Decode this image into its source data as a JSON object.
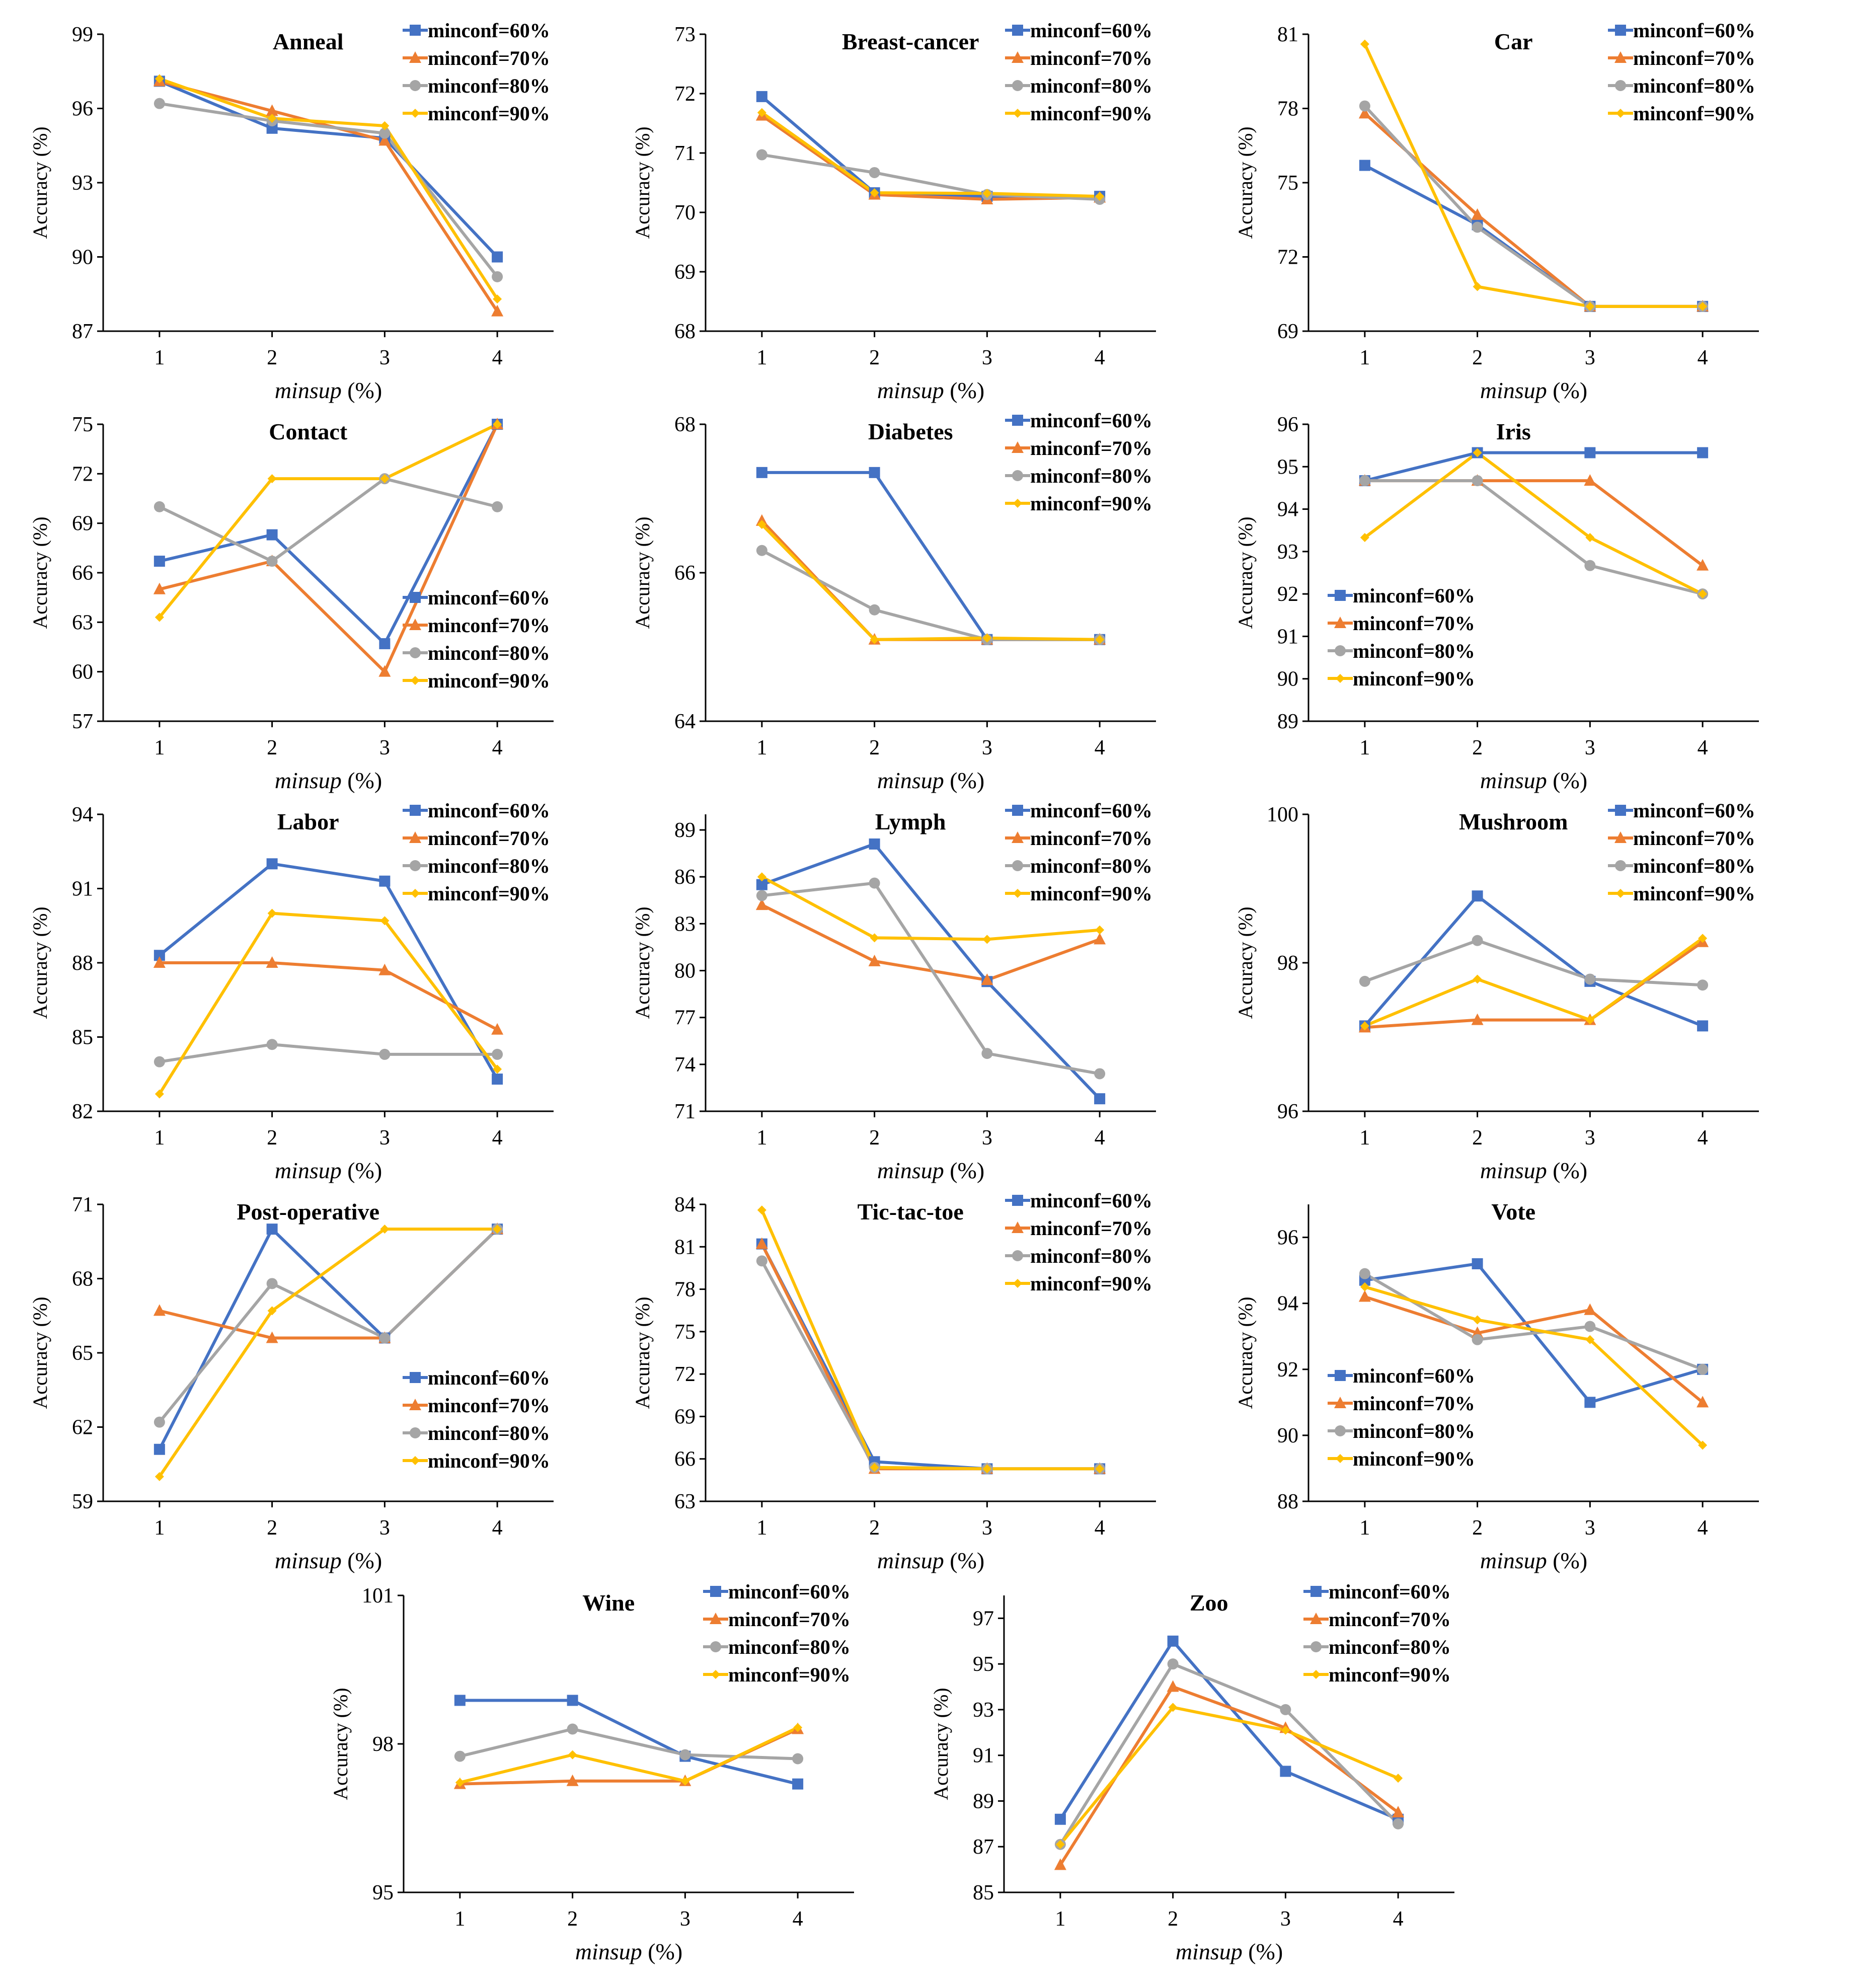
{
  "figure": {
    "xlabel_italic": "minsup",
    "xlabel_unit": " (%)",
    "ylabel": "Accuracy (%)",
    "colors": {
      "s60": "#4472C4",
      "s70": "#ED7D31",
      "s80": "#A5A5A5",
      "s90": "#FFC000"
    }
  },
  "series_names": [
    "minconf=60%",
    "minconf=70%",
    "minconf=80%",
    "minconf=90%"
  ],
  "chart_data": [
    {
      "type": "line",
      "title": "Anneal",
      "categories": [
        "1",
        "2",
        "3",
        "4"
      ],
      "ylim": [
        87,
        99
      ],
      "yticks": [
        "87",
        "90",
        "93",
        "96",
        "99"
      ],
      "legend": "top-right",
      "series": [
        {
          "name": "minconf=60%",
          "values": [
            97.1,
            95.2,
            94.8,
            90.0
          ]
        },
        {
          "name": "minconf=70%",
          "values": [
            97.1,
            95.9,
            94.7,
            87.8
          ]
        },
        {
          "name": "minconf=80%",
          "values": [
            96.2,
            95.5,
            95.0,
            89.2
          ]
        },
        {
          "name": "minconf=90%",
          "values": [
            97.2,
            95.6,
            95.3,
            88.3
          ]
        }
      ]
    },
    {
      "type": "line",
      "title": "Breast-cancer",
      "categories": [
        "1",
        "2",
        "3",
        "4"
      ],
      "ylim": [
        68,
        73
      ],
      "yticks": [
        "68",
        "69",
        "70",
        "71",
        "72",
        "73"
      ],
      "legend": "top-right",
      "series": [
        {
          "name": "minconf=60%",
          "values": [
            71.95,
            70.33,
            70.27,
            70.27
          ]
        },
        {
          "name": "minconf=70%",
          "values": [
            71.63,
            70.3,
            70.22,
            70.25
          ]
        },
        {
          "name": "minconf=80%",
          "values": [
            70.97,
            70.67,
            70.3,
            70.22
          ]
        },
        {
          "name": "minconf=90%",
          "values": [
            71.68,
            70.33,
            70.32,
            70.27
          ]
        }
      ]
    },
    {
      "type": "line",
      "title": "Car",
      "categories": [
        "1",
        "2",
        "3",
        "4"
      ],
      "ylim": [
        69,
        81
      ],
      "yticks": [
        "69",
        "72",
        "75",
        "78",
        "81"
      ],
      "legend": "top-right",
      "series": [
        {
          "name": "minconf=60%",
          "values": [
            75.7,
            73.3,
            70.0,
            70.0
          ]
        },
        {
          "name": "minconf=70%",
          "values": [
            77.8,
            73.7,
            70.0,
            70.0
          ]
        },
        {
          "name": "minconf=80%",
          "values": [
            78.1,
            73.2,
            70.0,
            70.0
          ]
        },
        {
          "name": "minconf=90%",
          "values": [
            80.6,
            70.8,
            70.0,
            70.0
          ]
        }
      ]
    },
    {
      "type": "line",
      "title": "Contact",
      "categories": [
        "1",
        "2",
        "3",
        "4"
      ],
      "ylim": [
        57,
        75
      ],
      "yticks": [
        "57",
        "60",
        "63",
        "66",
        "69",
        "72",
        "75"
      ],
      "legend": "bottom-right",
      "series": [
        {
          "name": "minconf=60%",
          "values": [
            66.7,
            68.3,
            61.7,
            75.0
          ]
        },
        {
          "name": "minconf=70%",
          "values": [
            65.0,
            66.7,
            60.0,
            75.0
          ]
        },
        {
          "name": "minconf=80%",
          "values": [
            70.0,
            66.7,
            71.7,
            70.0
          ]
        },
        {
          "name": "minconf=90%",
          "values": [
            63.3,
            71.7,
            71.7,
            75.0
          ]
        }
      ]
    },
    {
      "type": "line",
      "title": "Diabetes",
      "categories": [
        "1",
        "2",
        "3",
        "4"
      ],
      "ylim": [
        64,
        68
      ],
      "yticks": [
        "64",
        "66",
        "68"
      ],
      "legend": "top-right",
      "series": [
        {
          "name": "minconf=60%",
          "values": [
            67.35,
            67.35,
            65.1,
            65.1
          ]
        },
        {
          "name": "minconf=70%",
          "values": [
            66.7,
            65.1,
            65.1,
            65.1
          ]
        },
        {
          "name": "minconf=80%",
          "values": [
            66.3,
            65.5,
            65.1,
            65.1
          ]
        },
        {
          "name": "minconf=90%",
          "values": [
            66.65,
            65.1,
            65.12,
            65.1
          ]
        }
      ]
    },
    {
      "type": "line",
      "title": "Iris",
      "categories": [
        "1",
        "2",
        "3",
        "4"
      ],
      "ylim": [
        89,
        96
      ],
      "yticks": [
        "89",
        "90",
        "91",
        "92",
        "93",
        "94",
        "95",
        "96"
      ],
      "legend": "bottom-left",
      "series": [
        {
          "name": "minconf=60%",
          "values": [
            94.67,
            95.33,
            95.33,
            95.33
          ]
        },
        {
          "name": "minconf=70%",
          "values": [
            94.67,
            94.67,
            94.67,
            92.67
          ]
        },
        {
          "name": "minconf=80%",
          "values": [
            94.67,
            94.67,
            92.67,
            92.0
          ]
        },
        {
          "name": "minconf=90%",
          "values": [
            93.33,
            95.33,
            93.33,
            92.0
          ]
        }
      ]
    },
    {
      "type": "line",
      "title": "Labor",
      "categories": [
        "1",
        "2",
        "3",
        "4"
      ],
      "ylim": [
        82,
        94
      ],
      "yticks": [
        "82",
        "85",
        "88",
        "91",
        "94"
      ],
      "legend": "top-right",
      "series": [
        {
          "name": "minconf=60%",
          "values": [
            88.3,
            92.0,
            91.3,
            83.3
          ]
        },
        {
          "name": "minconf=70%",
          "values": [
            88.0,
            88.0,
            87.7,
            85.3
          ]
        },
        {
          "name": "minconf=80%",
          "values": [
            84.0,
            84.7,
            84.3,
            84.3
          ]
        },
        {
          "name": "minconf=90%",
          "values": [
            82.7,
            90.0,
            89.7,
            83.7
          ]
        }
      ]
    },
    {
      "type": "line",
      "title": "Lymph",
      "categories": [
        "1",
        "2",
        "3",
        "4"
      ],
      "ylim": [
        71,
        90
      ],
      "yticks": [
        "71",
        "74",
        "77",
        "80",
        "83",
        "86",
        "89"
      ],
      "legend": "top-right",
      "series": [
        {
          "name": "minconf=60%",
          "values": [
            85.5,
            88.1,
            79.3,
            71.8
          ]
        },
        {
          "name": "minconf=70%",
          "values": [
            84.2,
            80.6,
            79.4,
            82.0
          ]
        },
        {
          "name": "minconf=80%",
          "values": [
            84.8,
            85.6,
            74.7,
            73.4
          ]
        },
        {
          "name": "minconf=90%",
          "values": [
            86.0,
            82.1,
            82.0,
            82.6
          ]
        }
      ]
    },
    {
      "type": "line",
      "title": "Mushroom",
      "categories": [
        "1",
        "2",
        "3",
        "4"
      ],
      "ylim": [
        96,
        100
      ],
      "yticks": [
        "96",
        "98",
        "100"
      ],
      "legend": "top-right",
      "series": [
        {
          "name": "minconf=60%",
          "values": [
            97.15,
            98.9,
            97.75,
            97.15
          ]
        },
        {
          "name": "minconf=70%",
          "values": [
            97.13,
            97.23,
            97.23,
            98.28
          ]
        },
        {
          "name": "minconf=80%",
          "values": [
            97.75,
            98.3,
            97.78,
            97.7
          ]
        },
        {
          "name": "minconf=90%",
          "values": [
            97.15,
            97.78,
            97.23,
            98.33
          ]
        }
      ]
    },
    {
      "type": "line",
      "title": "Post-operative",
      "categories": [
        "1",
        "2",
        "3",
        "4"
      ],
      "ylim": [
        59,
        71
      ],
      "yticks": [
        "59",
        "62",
        "65",
        "68",
        "71"
      ],
      "legend": "bottom-right",
      "series": [
        {
          "name": "minconf=60%",
          "values": [
            61.1,
            70.0,
            65.6,
            70.0
          ]
        },
        {
          "name": "minconf=70%",
          "values": [
            66.7,
            65.6,
            65.6,
            70.0
          ]
        },
        {
          "name": "minconf=80%",
          "values": [
            62.2,
            67.8,
            65.6,
            70.0
          ]
        },
        {
          "name": "minconf=90%",
          "values": [
            60.0,
            66.7,
            70.0,
            70.0
          ]
        }
      ]
    },
    {
      "type": "line",
      "title": "Tic-tac-toe",
      "categories": [
        "1",
        "2",
        "3",
        "4"
      ],
      "ylim": [
        63,
        84
      ],
      "yticks": [
        "63",
        "66",
        "69",
        "72",
        "75",
        "78",
        "81",
        "84"
      ],
      "legend": "top-right",
      "series": [
        {
          "name": "minconf=60%",
          "values": [
            81.2,
            65.8,
            65.3,
            65.3
          ]
        },
        {
          "name": "minconf=70%",
          "values": [
            81.2,
            65.3,
            65.3,
            65.3
          ]
        },
        {
          "name": "minconf=80%",
          "values": [
            80.0,
            65.4,
            65.3,
            65.3
          ]
        },
        {
          "name": "minconf=90%",
          "values": [
            83.6,
            65.4,
            65.3,
            65.3
          ]
        }
      ]
    },
    {
      "type": "line",
      "title": "Vote",
      "categories": [
        "1",
        "2",
        "3",
        "4"
      ],
      "ylim": [
        88,
        97
      ],
      "yticks": [
        "88",
        "90",
        "92",
        "94",
        "96"
      ],
      "legend": "bottom-left",
      "series": [
        {
          "name": "minconf=60%",
          "values": [
            94.7,
            95.2,
            91.0,
            92.0
          ]
        },
        {
          "name": "minconf=70%",
          "values": [
            94.2,
            93.1,
            93.8,
            91.0
          ]
        },
        {
          "name": "minconf=80%",
          "values": [
            94.9,
            92.9,
            93.3,
            92.0
          ]
        },
        {
          "name": "minconf=90%",
          "values": [
            94.5,
            93.5,
            92.9,
            89.7
          ]
        }
      ]
    },
    {
      "type": "line",
      "title": "Wine",
      "categories": [
        "1",
        "2",
        "3",
        "4"
      ],
      "ylim": [
        95,
        101
      ],
      "yticks": [
        "95",
        "98",
        "101"
      ],
      "legend": "top-right",
      "series": [
        {
          "name": "minconf=60%",
          "values": [
            98.88,
            98.88,
            97.75,
            97.19
          ]
        },
        {
          "name": "minconf=70%",
          "values": [
            97.19,
            97.25,
            97.25,
            98.3
          ]
        },
        {
          "name": "minconf=80%",
          "values": [
            97.75,
            98.3,
            97.78,
            97.7
          ]
        },
        {
          "name": "minconf=90%",
          "values": [
            97.22,
            97.78,
            97.25,
            98.33
          ]
        }
      ]
    },
    {
      "type": "line",
      "title": "Zoo",
      "categories": [
        "1",
        "2",
        "3",
        "4"
      ],
      "ylim": [
        85,
        98
      ],
      "yticks": [
        "85",
        "87",
        "89",
        "91",
        "93",
        "95",
        "97"
      ],
      "legend": "top-right",
      "series": [
        {
          "name": "minconf=60%",
          "values": [
            88.2,
            96.0,
            90.3,
            88.2
          ]
        },
        {
          "name": "minconf=70%",
          "values": [
            86.2,
            94.0,
            92.2,
            88.5
          ]
        },
        {
          "name": "minconf=80%",
          "values": [
            87.1,
            95.0,
            93.0,
            88.0
          ]
        },
        {
          "name": "minconf=90%",
          "values": [
            87.1,
            93.1,
            92.1,
            90.0
          ]
        }
      ]
    }
  ]
}
